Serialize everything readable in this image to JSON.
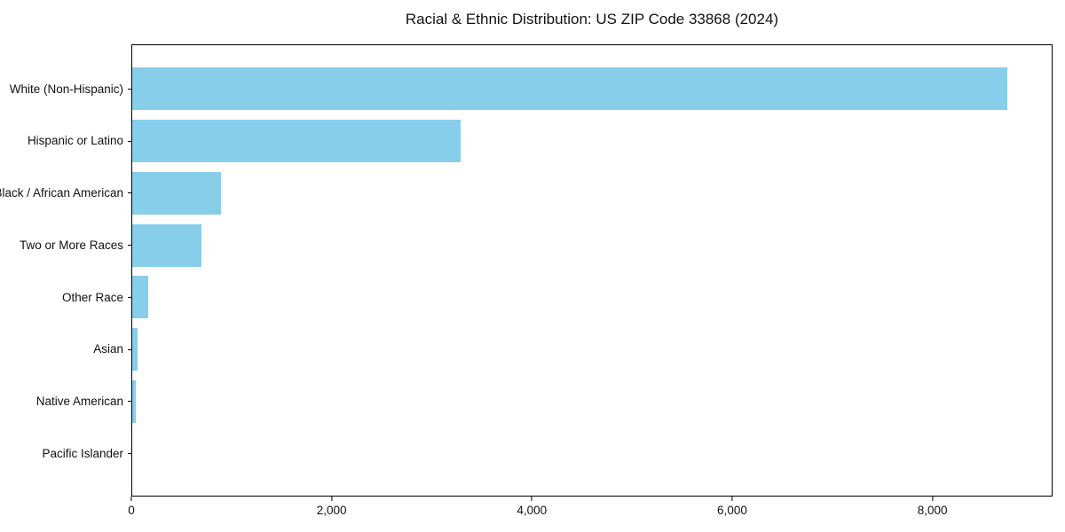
{
  "title": "Racial & Ethnic Distribution: US ZIP Code 33868 (2024)",
  "colors": {
    "bar": "#87CEEB",
    "axis": "#000000",
    "text": "#111111",
    "background": "#FFFFFF"
  },
  "chart_data": {
    "type": "bar",
    "orientation": "horizontal",
    "title": "Racial & Ethnic Distribution: US ZIP Code 33868 (2024)",
    "categories": [
      "White (Non-Hispanic)",
      "Hispanic or Latino",
      "Black / African American",
      "Two or More Races",
      "Other Race",
      "Asian",
      "Native American",
      "Pacific Islander"
    ],
    "values": [
      8760,
      3290,
      885,
      690,
      160,
      50,
      35,
      0
    ],
    "xlabel": "",
    "ylabel": "",
    "xlim": [
      0,
      9200
    ],
    "xticks": [
      0,
      2000,
      4000,
      6000,
      8000
    ],
    "xtick_labels": [
      "0",
      "2,000",
      "4,000",
      "6,000",
      "8,000"
    ],
    "grid": false,
    "legend": null,
    "bar_color": "#87CEEB"
  }
}
